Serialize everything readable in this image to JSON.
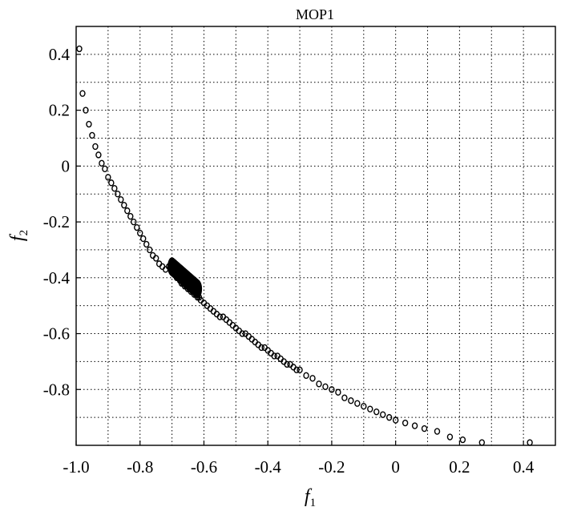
{
  "chart_data": {
    "type": "scatter",
    "title": "MOP1",
    "xlabel": {
      "main": "f",
      "sub": "1"
    },
    "ylabel": {
      "main": "f",
      "sub": "2"
    },
    "xlim": [
      -1.0,
      0.5
    ],
    "ylim": [
      -1.0,
      0.5
    ],
    "grid": true,
    "x_tick_labels": [
      "-1.0",
      "-0.8",
      "-0.6",
      "-0.4",
      "-0.2",
      "0",
      "0.2",
      "0.4"
    ],
    "x_tick_values": [
      -1.0,
      -0.8,
      -0.6,
      -0.4,
      -0.2,
      0,
      0.2,
      0.4
    ],
    "x_grid_values": [
      -0.9,
      -0.8,
      -0.7,
      -0.6,
      -0.5,
      -0.4,
      -0.3,
      -0.2,
      -0.1,
      0,
      0.1,
      0.2,
      0.3,
      0.4
    ],
    "y_tick_labels": [
      "0.4",
      "0.2",
      "0",
      "-0.2",
      "-0.4",
      "-0.6",
      "-0.8"
    ],
    "y_tick_values": [
      0.4,
      0.2,
      0,
      -0.2,
      -0.4,
      -0.6,
      -0.8
    ],
    "y_grid_values": [
      0.4,
      0.3,
      0.2,
      0.1,
      0,
      -0.1,
      -0.2,
      -0.3,
      -0.4,
      -0.5,
      -0.6,
      -0.7,
      -0.8,
      -0.9
    ],
    "marker_color": "#000000",
    "series": [
      {
        "x": [
          -0.99,
          -0.98,
          -0.97,
          -0.96,
          -0.95,
          -0.94,
          -0.93,
          -0.92,
          -0.91,
          -0.9,
          -0.89,
          -0.88,
          -0.87,
          -0.86,
          -0.85,
          -0.84,
          -0.83,
          -0.82,
          -0.81,
          -0.8,
          -0.79,
          -0.78,
          -0.77,
          -0.76,
          -0.75,
          -0.74,
          -0.73,
          -0.72,
          -0.71,
          -0.7,
          -0.695,
          -0.69,
          -0.685,
          -0.68,
          -0.675,
          -0.67,
          -0.665,
          -0.66,
          -0.655,
          -0.65,
          -0.645,
          -0.64,
          -0.635,
          -0.63,
          -0.625,
          -0.62,
          -0.615,
          -0.61,
          -0.6,
          -0.59,
          -0.58,
          -0.57,
          -0.56,
          -0.55,
          -0.54,
          -0.53,
          -0.52,
          -0.51,
          -0.5,
          -0.49,
          -0.48,
          -0.47,
          -0.46,
          -0.45,
          -0.44,
          -0.43,
          -0.42,
          -0.41,
          -0.4,
          -0.39,
          -0.38,
          -0.37,
          -0.36,
          -0.35,
          -0.34,
          -0.33,
          -0.32,
          -0.31,
          -0.3,
          -0.28,
          -0.26,
          -0.24,
          -0.22,
          -0.2,
          -0.18,
          -0.16,
          -0.14,
          -0.12,
          -0.1,
          -0.08,
          -0.06,
          -0.04,
          -0.02,
          0,
          0.03,
          0.06,
          0.09,
          0.13,
          0.17,
          0.21,
          0.27,
          0.42
        ],
        "y": [
          0.42,
          0.26,
          0.2,
          0.15,
          0.11,
          0.07,
          0.04,
          0.01,
          -0.01,
          -0.04,
          -0.06,
          -0.08,
          -0.1,
          -0.12,
          -0.14,
          -0.16,
          -0.18,
          -0.2,
          -0.22,
          -0.24,
          -0.26,
          -0.28,
          -0.3,
          -0.32,
          -0.33,
          -0.35,
          -0.36,
          -0.37,
          -0.36,
          -0.37,
          -0.38,
          -0.39,
          -0.4,
          -0.4,
          -0.41,
          -0.42,
          -0.42,
          -0.43,
          -0.43,
          -0.44,
          -0.44,
          -0.45,
          -0.45,
          -0.46,
          -0.46,
          -0.47,
          -0.47,
          -0.48,
          -0.49,
          -0.5,
          -0.51,
          -0.52,
          -0.53,
          -0.54,
          -0.54,
          -0.55,
          -0.56,
          -0.57,
          -0.58,
          -0.59,
          -0.6,
          -0.6,
          -0.61,
          -0.62,
          -0.63,
          -0.64,
          -0.65,
          -0.65,
          -0.66,
          -0.67,
          -0.68,
          -0.68,
          -0.69,
          -0.7,
          -0.71,
          -0.71,
          -0.72,
          -0.73,
          -0.73,
          -0.75,
          -0.76,
          -0.78,
          -0.79,
          -0.8,
          -0.81,
          -0.83,
          -0.84,
          -0.85,
          -0.86,
          -0.87,
          -0.88,
          -0.89,
          -0.9,
          -0.91,
          -0.92,
          -0.93,
          -0.94,
          -0.95,
          -0.97,
          -0.98,
          -0.99,
          -0.99
        ]
      }
    ],
    "cluster": {
      "x_range": [
        -0.7,
        -0.62
      ],
      "y_range": [
        -0.36,
        -0.44
      ]
    }
  }
}
